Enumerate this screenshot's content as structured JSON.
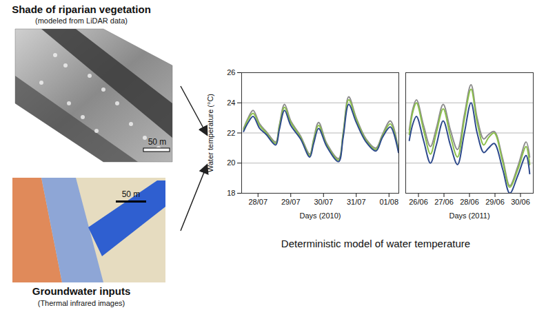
{
  "images": [
    {
      "title": "Shade of riparian vegetation",
      "subtitle": "(modeled from LiDAR data)",
      "scale_bar": "50 m"
    },
    {
      "title": "Groundwater inputs",
      "subtitle": "(Thermal infrared images)",
      "scale_bar": "50 m"
    }
  ],
  "chart_data": [
    {
      "type": "line",
      "ylabel": "Water temperature (°C)",
      "xlabel": "Days (2010)",
      "x": [
        0.06,
        0.2,
        0.35,
        0.55,
        0.75,
        1.04,
        1.15,
        1.31,
        1.5,
        1.8,
        2.08,
        2.2,
        2.35,
        2.6,
        2.96,
        3.1,
        3.27,
        3.5,
        3.8,
        4.1,
        4.3,
        4.54,
        4.79
      ],
      "series": [
        {
          "color": "#8c8c8c",
          "values": [
            22.3,
            23.0,
            23.5,
            22.6,
            22.1,
            21.4,
            22.5,
            23.9,
            22.8,
            21.8,
            20.6,
            21.6,
            22.7,
            21.3,
            20.3,
            22.0,
            24.4,
            23.0,
            21.6,
            21.0,
            21.9,
            22.8,
            20.9
          ]
        },
        {
          "color": "#8cc04b",
          "values": [
            22.2,
            22.9,
            23.3,
            22.5,
            22.0,
            21.3,
            22.4,
            23.7,
            22.7,
            21.7,
            20.5,
            21.5,
            22.5,
            21.2,
            20.2,
            21.9,
            24.2,
            22.9,
            21.5,
            20.9,
            21.8,
            22.6,
            20.8
          ]
        },
        {
          "color": "#2e4a8c",
          "values": [
            22.1,
            22.7,
            23.1,
            22.3,
            21.9,
            21.2,
            22.2,
            23.5,
            22.5,
            21.6,
            20.4,
            21.3,
            22.3,
            21.1,
            20.1,
            21.7,
            23.9,
            22.7,
            21.4,
            20.8,
            21.7,
            22.4,
            20.7
          ]
        }
      ],
      "xlim": [
        0,
        4.8
      ],
      "xticks": [
        {
          "value": 0.5,
          "label": "28/07"
        },
        {
          "value": 1.5,
          "label": "29/07"
        },
        {
          "value": 2.5,
          "label": "30/07"
        },
        {
          "value": 3.5,
          "label": "31/07"
        },
        {
          "value": 4.5,
          "label": "01/08"
        }
      ],
      "ylim": [
        18,
        26
      ],
      "yticks": [
        18,
        20,
        22,
        24,
        26
      ],
      "grid": true
    },
    {
      "type": "line",
      "xlabel": "Days (2011)",
      "x": [
        0.14,
        0.28,
        0.42,
        0.7,
        0.97,
        1.2,
        1.47,
        1.75,
        2.03,
        2.3,
        2.56,
        2.8,
        3.06,
        3.25,
        3.47,
        3.8,
        4.08,
        4.4,
        4.72,
        4.86
      ],
      "series": [
        {
          "color": "#8c8c8c",
          "values": [
            22.2,
            23.6,
            24.2,
            22.5,
            21.1,
            22.3,
            23.9,
            22.2,
            20.9,
            23.2,
            25.2,
            23.0,
            21.6,
            21.9,
            22.1,
            20.3,
            18.5,
            19.8,
            21.4,
            20.4
          ]
        },
        {
          "color": "#8cc04b",
          "values": [
            21.9,
            23.4,
            24.0,
            22.2,
            20.6,
            22.0,
            23.6,
            21.8,
            20.4,
            22.9,
            24.9,
            22.7,
            21.2,
            21.7,
            22.0,
            20.1,
            18.4,
            19.6,
            21.1,
            19.9
          ]
        },
        {
          "color": "#2e4a8c",
          "values": [
            21.5,
            22.6,
            23.1,
            21.5,
            20.0,
            21.2,
            22.8,
            21.2,
            19.9,
            22.0,
            24.0,
            22.0,
            20.7,
            21.0,
            21.3,
            19.6,
            18.0,
            19.2,
            20.5,
            19.3
          ]
        }
      ],
      "xlim": [
        0,
        5
      ],
      "xticks": [
        {
          "value": 0.5,
          "label": "26/06"
        },
        {
          "value": 1.5,
          "label": "27/06"
        },
        {
          "value": 2.5,
          "label": "28/06"
        },
        {
          "value": 3.5,
          "label": "29/06"
        },
        {
          "value": 4.5,
          "label": "30/06"
        }
      ],
      "ylim": [
        18,
        26
      ],
      "yticks": [
        18,
        20,
        22,
        24,
        26
      ],
      "grid": true,
      "tick_labels": "x"
    }
  ],
  "caption": "Deterministic model of water temperature"
}
